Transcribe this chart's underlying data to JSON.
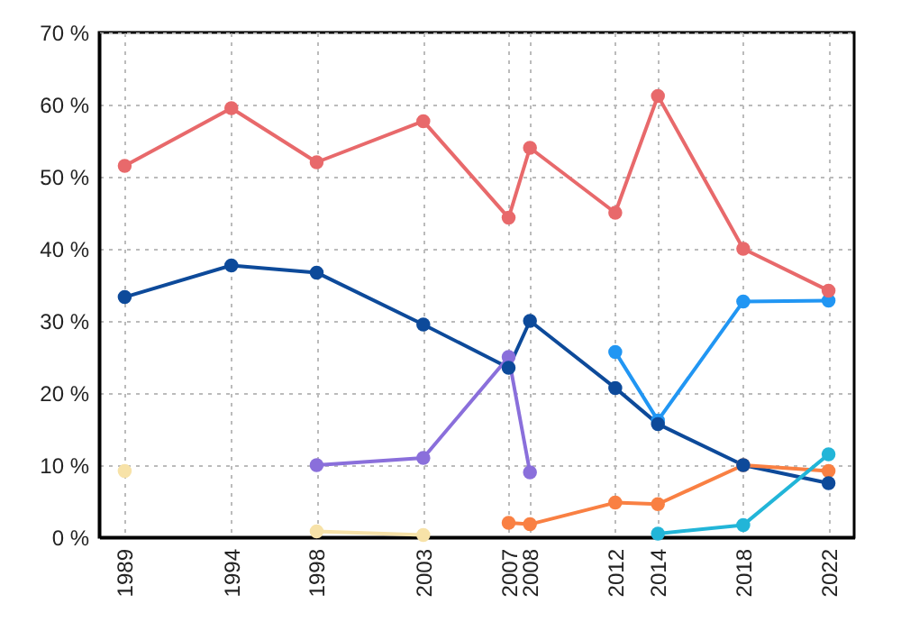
{
  "chart_data": {
    "type": "line",
    "x": [
      1989,
      1994,
      1998,
      2003,
      2007,
      2008,
      2012,
      2014,
      2018,
      2022
    ],
    "series": [
      {
        "color": "#e8696b",
        "values": [
          51.5,
          59.5,
          52,
          57.7,
          44.3,
          54,
          45,
          61.2,
          40,
          34.2
        ]
      },
      {
        "color": "#0d4a9a",
        "values": [
          33.3,
          37.7,
          36.7,
          29.5,
          23.5,
          30,
          20.7,
          15.7,
          10,
          7.5
        ]
      },
      {
        "color": "#8a6fdb",
        "x": [
          1998,
          2003,
          2007,
          2008
        ],
        "values": [
          10,
          11,
          25,
          9
        ]
      },
      {
        "color": "#2196f3",
        "x": [
          2012,
          2014,
          2018,
          2022
        ],
        "values": [
          25.7,
          16.2,
          32.7,
          32.8
        ]
      },
      {
        "color": "#f98043",
        "x": [
          2007,
          2008,
          2012,
          2014,
          2018,
          2022
        ],
        "values": [
          2,
          1.8,
          4.8,
          4.6,
          10,
          9.2
        ]
      },
      {
        "color": "#22b5d8",
        "x": [
          2014,
          2018,
          2022
        ],
        "values": [
          0.5,
          1.7,
          11.5
        ]
      },
      {
        "color": "#f7e2a8",
        "x": [
          1989,
          1994,
          1998,
          2003
        ],
        "values": [
          9.2,
          null,
          0.8,
          0.3
        ]
      }
    ],
    "xlim": [
      1987.8,
      2023.2
    ],
    "xticks": [
      1989,
      1994,
      1998,
      2003,
      2007,
      2008,
      2012,
      2014,
      2018,
      2022
    ],
    "ylim": [
      0,
      70
    ],
    "yticks": [
      {
        "value": 0,
        "label": "0 %"
      },
      {
        "value": 10,
        "label": "10 %"
      },
      {
        "value": 20,
        "label": "20 %"
      },
      {
        "value": 30,
        "label": "30 %"
      },
      {
        "value": 40,
        "label": "40 %"
      },
      {
        "value": 50,
        "label": "50 %"
      },
      {
        "value": 60,
        "label": "60 %"
      },
      {
        "value": 70,
        "label": "70 %"
      }
    ],
    "grid": true,
    "marker": "circle",
    "line_style": "solid"
  }
}
